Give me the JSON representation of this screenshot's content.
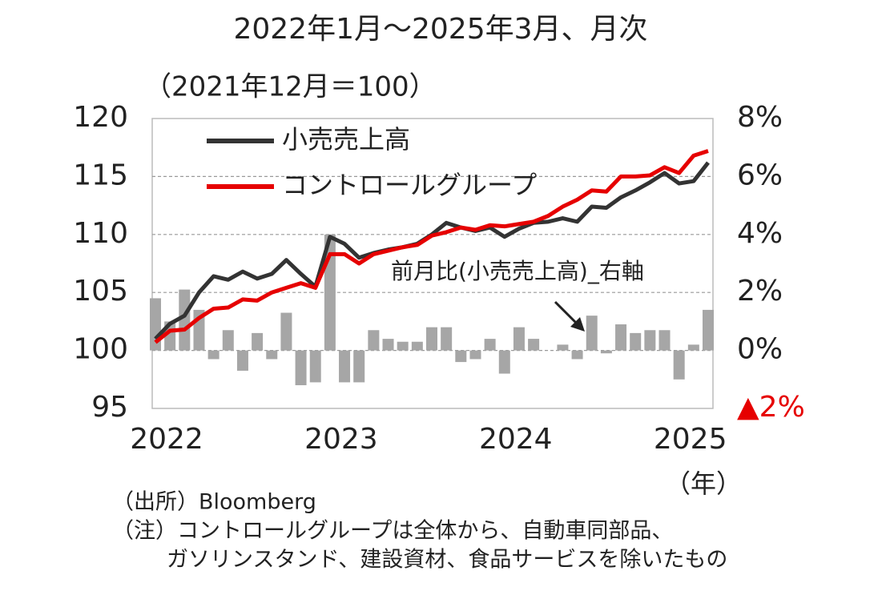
{
  "chart_data": {
    "type": "line",
    "title": "2022年1月～2025年3月、月次",
    "ylabel": "（2021年12月＝100）",
    "xlabel": "（年）",
    "categories": [
      "2022",
      null,
      null,
      null,
      null,
      null,
      null,
      null,
      null,
      null,
      null,
      null,
      "2023",
      null,
      null,
      null,
      null,
      null,
      null,
      null,
      null,
      null,
      null,
      null,
      "2024",
      null,
      null,
      null,
      null,
      null,
      null,
      null,
      null,
      null,
      null,
      null,
      "2025",
      null,
      null
    ],
    "series": [
      {
        "name": "前月比(小売売上高)_右軸",
        "type": "bar",
        "axis": "y2",
        "color": "#a6a6a6",
        "values": [
          1.8,
          1.0,
          2.1,
          1.4,
          -0.3,
          0.7,
          -0.7,
          0.6,
          -0.3,
          1.3,
          -1.2,
          -1.1,
          4.0,
          -1.1,
          -1.1,
          0.7,
          0.4,
          0.3,
          0.3,
          0.8,
          0.8,
          -0.4,
          -0.3,
          0.4,
          -0.8,
          0.8,
          0.4,
          0.0,
          0.2,
          -0.3,
          1.2,
          -0.1,
          0.9,
          0.6,
          0.7,
          0.7,
          -1.0,
          0.2,
          1.4
        ]
      },
      {
        "name": "小売売上高",
        "type": "line",
        "color": "#333333",
        "values": [
          101.0,
          102.3,
          103.0,
          105.0,
          106.4,
          106.1,
          106.8,
          106.2,
          106.6,
          107.8,
          106.6,
          105.5,
          109.8,
          109.2,
          108.0,
          108.4,
          108.7,
          108.9,
          109.2,
          110.0,
          111.0,
          110.6,
          110.3,
          110.6,
          109.8,
          110.5,
          111.0,
          111.1,
          111.4,
          111.1,
          112.4,
          112.3,
          113.2,
          113.8,
          114.5,
          115.3,
          114.4,
          114.6,
          116.2
        ]
      },
      {
        "name": "コントロールグループ",
        "type": "line",
        "color": "#e60000",
        "values": [
          100.7,
          101.7,
          101.8,
          102.8,
          103.6,
          103.7,
          104.4,
          104.3,
          105.0,
          105.4,
          105.8,
          105.4,
          108.3,
          108.3,
          107.5,
          108.3,
          108.6,
          108.9,
          109.1,
          109.9,
          110.2,
          110.6,
          110.4,
          110.8,
          110.7,
          110.9,
          111.1,
          111.6,
          112.4,
          113.0,
          113.8,
          113.7,
          115.0,
          115.0,
          115.1,
          115.8,
          115.3,
          116.8,
          117.2
        ]
      }
    ],
    "ylim": [
      95,
      120
    ],
    "yticks": [
      95,
      100,
      105,
      110,
      115,
      120
    ],
    "y2lim": [
      -2,
      8
    ],
    "y2ticks": [
      {
        "value": -2,
        "label": "▲2%"
      },
      {
        "value": 0,
        "label": "0%"
      },
      {
        "value": 2,
        "label": "2%"
      },
      {
        "value": 4,
        "label": "4%"
      },
      {
        "value": 6,
        "label": "6%"
      },
      {
        "value": 8,
        "label": "8%"
      }
    ],
    "negative_tick_color": "#e60000",
    "grid": true,
    "legend": "upper left",
    "notes": [
      "（出所）Bloomberg",
      "（注）コントロールグループは全体から、自動車同部品、",
      "ガソリンスタンド、建設資材、食品サービスを除いたもの"
    ]
  }
}
